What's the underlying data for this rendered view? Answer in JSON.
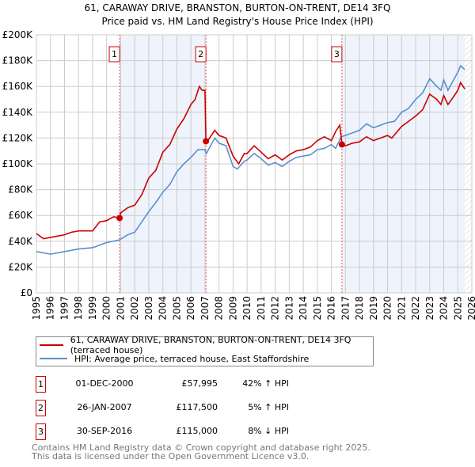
{
  "chart_data": {
    "type": "line",
    "title": "61, CARAWAY DRIVE, BRANSTON, BURTON-ON-TRENT, DE14 3FQ",
    "subtitle": "Price paid vs. HM Land Registry's House Price Index (HPI)",
    "xlim": [
      1995,
      2026
    ],
    "ylim": [
      0,
      200000
    ],
    "x_ticks": [
      "1995",
      "1996",
      "1997",
      "1998",
      "1999",
      "2000",
      "2001",
      "2002",
      "2003",
      "2004",
      "2005",
      "2006",
      "2007",
      "2008",
      "2009",
      "2010",
      "2011",
      "2012",
      "2013",
      "2014",
      "2015",
      "2016",
      "2017",
      "2018",
      "2019",
      "2020",
      "2021",
      "2022",
      "2023",
      "2024",
      "2025",
      "2026"
    ],
    "y_ticks": [
      {
        "v": 0,
        "label": "£0"
      },
      {
        "v": 20000,
        "label": "£20K"
      },
      {
        "v": 40000,
        "label": "£40K"
      },
      {
        "v": 60000,
        "label": "£60K"
      },
      {
        "v": 80000,
        "label": "£80K"
      },
      {
        "v": 100000,
        "label": "£100K"
      },
      {
        "v": 120000,
        "label": "£120K"
      },
      {
        "v": 140000,
        "label": "£140K"
      },
      {
        "v": 160000,
        "label": "£160K"
      },
      {
        "v": 180000,
        "label": "£180K"
      },
      {
        "v": 200000,
        "label": "£200K"
      }
    ],
    "grid": true,
    "shaded_ranges": [
      [
        2000.92,
        2007.07
      ],
      [
        2016.75,
        2025.5
      ]
    ],
    "projection_start": 2025.5,
    "series": [
      {
        "name": "61, CARAWAY DRIVE, BRANSTON, BURTON-ON-TRENT, DE14 3FQ (terraced house)",
        "color": "#cc0000",
        "x": [
          1995,
          1995.5,
          1996,
          1997,
          1997.5,
          1998,
          1999,
          1999.5,
          2000,
          2000.5,
          2000.92,
          2001,
          2001.5,
          2002,
          2002.5,
          2003,
          2003.5,
          2004,
          2004.5,
          2005,
          2005.5,
          2006,
          2006.3,
          2006.6,
          2006.8,
          2007.0,
          2007.07,
          2007.2,
          2007.7,
          2008,
          2008.5,
          2009,
          2009.4,
          2009.8,
          2010,
          2010.5,
          2011,
          2011.5,
          2012,
          2012.5,
          2013,
          2013.5,
          2014,
          2014.5,
          2015,
          2015.5,
          2016,
          2016.3,
          2016.6,
          2016.75,
          2017,
          2017.5,
          2018,
          2018.5,
          2019,
          2019.5,
          2020,
          2020.3,
          2021,
          2021.5,
          2022,
          2022.5,
          2023,
          2023.5,
          2023.8,
          2024,
          2024.3,
          2024.7,
          2025,
          2025.2,
          2025.5
        ],
        "y": [
          46000,
          42000,
          43000,
          45000,
          47000,
          48000,
          48000,
          55000,
          56000,
          59000,
          58000,
          62000,
          66000,
          68000,
          76000,
          89000,
          95000,
          109000,
          115000,
          127000,
          135000,
          146000,
          150000,
          160000,
          157000,
          157000,
          117500,
          118000,
          126000,
          122000,
          120000,
          106000,
          100000,
          108000,
          108000,
          114000,
          109000,
          104000,
          107000,
          103000,
          107000,
          110000,
          111000,
          113000,
          118000,
          121000,
          118000,
          125000,
          130000,
          115000,
          114000,
          116000,
          117000,
          121000,
          118000,
          120000,
          122000,
          120000,
          129000,
          133000,
          137000,
          142000,
          154000,
          150000,
          146000,
          153000,
          146000,
          152000,
          157000,
          163000,
          158000
        ]
      },
      {
        "name": "HPI: Average price, terraced house, East Staffordshire",
        "color": "#5b8fd0",
        "x": [
          1995,
          1996,
          1997,
          1998,
          1999,
          2000,
          2000.9,
          2001.5,
          2002,
          2002.5,
          2003,
          2003.5,
          2004,
          2004.5,
          2005,
          2005.5,
          2006,
          2006.5,
          2007,
          2007.1,
          2007.7,
          2008,
          2008.5,
          2009,
          2009.3,
          2009.8,
          2010,
          2010.5,
          2011,
          2011.5,
          2012,
          2012.5,
          2013,
          2013.5,
          2014,
          2014.5,
          2015,
          2015.5,
          2016,
          2016.3,
          2016.7,
          2017,
          2017.5,
          2018,
          2018.5,
          2019,
          2019.5,
          2020,
          2020.5,
          2021,
          2021.5,
          2022,
          2022.5,
          2023,
          2023.5,
          2023.8,
          2024,
          2024.3,
          2024.7,
          2025,
          2025.2,
          2025.5
        ],
        "y": [
          32000,
          30000,
          32000,
          34000,
          35000,
          39000,
          41000,
          45000,
          47000,
          55000,
          63000,
          70000,
          78000,
          84000,
          94000,
          100000,
          105000,
          111000,
          111000,
          108000,
          120000,
          116000,
          114000,
          98000,
          96000,
          102000,
          103000,
          108000,
          104000,
          99000,
          101000,
          98000,
          102000,
          105000,
          106000,
          107000,
          111000,
          112000,
          115000,
          112000,
          121000,
          122000,
          124000,
          126000,
          131000,
          128000,
          130000,
          132000,
          133000,
          140000,
          143000,
          150000,
          155000,
          166000,
          160000,
          157000,
          165000,
          157000,
          165000,
          171000,
          176000,
          173000
        ]
      }
    ],
    "sales": [
      {
        "n": "1",
        "x": 2000.92,
        "y": 57995
      },
      {
        "n": "2",
        "x": 2007.07,
        "y": 117500
      },
      {
        "n": "3",
        "x": 2016.75,
        "y": 115000
      }
    ]
  },
  "legend": {
    "property": "61, CARAWAY DRIVE, BRANSTON, BURTON-ON-TRENT, DE14 3FQ (terraced house)",
    "hpi": "HPI: Average price, terraced house, East Staffordshire"
  },
  "transactions": [
    {
      "n": "1",
      "date": "01-DEC-2000",
      "price": "£57,995",
      "hpi": "42% ↑ HPI"
    },
    {
      "n": "2",
      "date": "26-JAN-2007",
      "price": "£117,500",
      "hpi": "5% ↑ HPI"
    },
    {
      "n": "3",
      "date": "30-SEP-2016",
      "price": "£115,000",
      "hpi": "8% ↓ HPI"
    }
  ],
  "footer": {
    "line1": "Contains HM Land Registry data © Crown copyright and database right 2025.",
    "line2": "This data is licensed under the Open Government Licence v3.0."
  }
}
